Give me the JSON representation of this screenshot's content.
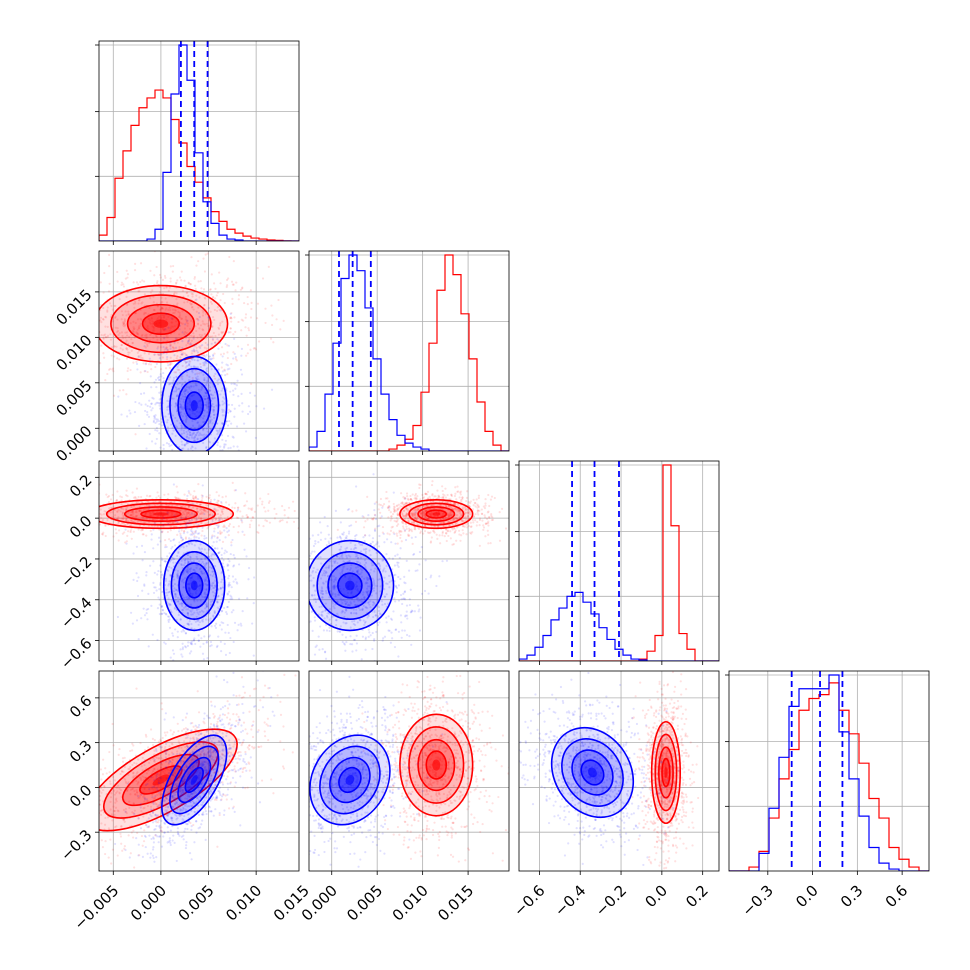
{
  "chart_data": {
    "type": "corner",
    "title": "",
    "n_params": 4,
    "colors": {
      "series_a": "#ff0000",
      "series_b": "#0000ff"
    },
    "grid": true,
    "param_ranges": [
      [
        -0.0065,
        0.0145
      ],
      [
        -0.0025,
        0.0195
      ],
      [
        -0.7,
        0.28
      ],
      [
        -0.56,
        0.78
      ]
    ],
    "x_tick_labels": [
      [
        "−0.005",
        "0.000",
        "0.005",
        "0.010",
        "0.015"
      ],
      [
        "0.000",
        "0.005",
        "0.010",
        "0.015"
      ],
      [
        "−0.6",
        "−0.4",
        "−0.2",
        "0.0",
        "0.2"
      ],
      [
        "−0.3",
        "0.0",
        "0.3",
        "0.6"
      ]
    ],
    "x_tick_values": [
      [
        -0.005,
        0.0,
        0.005,
        0.01,
        0.015
      ],
      [
        0.0,
        0.005,
        0.01,
        0.015
      ],
      [
        -0.6,
        -0.4,
        -0.2,
        0.0,
        0.2
      ],
      [
        -0.3,
        0.0,
        0.3,
        0.6
      ]
    ],
    "y_tick_labels": [
      [],
      [
        "0.000",
        "0.005",
        "0.010",
        "0.015"
      ],
      [
        "−0.6",
        "−0.4",
        "−0.2",
        "0.0",
        "0.2"
      ],
      [
        "−0.3",
        "0.0",
        "0.3",
        "0.6"
      ]
    ],
    "y_tick_values": [
      [],
      [
        0.0,
        0.005,
        0.01,
        0.015
      ],
      [
        -0.6,
        -0.4,
        -0.2,
        0.0,
        0.2
      ],
      [
        -0.3,
        0.0,
        0.3,
        0.6
      ]
    ],
    "marginals": [
      {
        "bins": [
          -0.0065,
          0.0145
        ],
        "series_a": [
          0.03,
          0.12,
          0.32,
          0.46,
          0.59,
          0.68,
          0.73,
          0.77,
          0.73,
          0.62,
          0.5,
          0.38,
          0.3,
          0.22,
          0.15,
          0.1,
          0.06,
          0.04,
          0.025,
          0.015,
          0.01,
          0.005,
          0.003,
          0.001,
          0.0
        ],
        "series_b": [
          0.0,
          0.0,
          0.0,
          0.0,
          0.0,
          0.0,
          0.01,
          0.06,
          0.35,
          0.75,
          1.0,
          0.82,
          0.45,
          0.2,
          0.09,
          0.03,
          0.01,
          0.005,
          0.0,
          0.0,
          0.0,
          0.0,
          0.0,
          0.0,
          0.0
        ],
        "quantiles_b": [
          0.0021,
          0.0035,
          0.0049
        ]
      },
      {
        "bins": [
          -0.0025,
          0.0195
        ],
        "series_a": [
          0.0,
          0.0,
          0.0,
          0.0,
          0.0,
          0.0,
          0.0,
          0.0,
          0.0,
          0.0,
          0.01,
          0.03,
          0.06,
          0.13,
          0.3,
          0.55,
          0.82,
          1.0,
          0.9,
          0.7,
          0.47,
          0.25,
          0.1,
          0.03,
          0.0
        ],
        "series_b": [
          0.02,
          0.1,
          0.29,
          0.55,
          0.88,
          1.0,
          0.92,
          0.73,
          0.47,
          0.29,
          0.16,
          0.08,
          0.04,
          0.02,
          0.01,
          0.0,
          0.0,
          0.0,
          0.0,
          0.0,
          0.0,
          0.0,
          0.0,
          0.0,
          0.0
        ],
        "quantiles_b": [
          0.0008,
          0.0023,
          0.0043
        ]
      },
      {
        "bins": [
          -0.7,
          0.28
        ],
        "series_a": [
          0.0,
          0.0,
          0.0,
          0.0,
          0.0,
          0.0,
          0.0,
          0.0,
          0.0,
          0.0,
          0.0,
          0.0,
          0.0,
          0.0,
          0.0,
          0.01,
          0.05,
          0.13,
          1.0,
          0.69,
          0.14,
          0.06,
          0.0,
          0.0,
          0.0
        ],
        "series_b": [
          0.01,
          0.03,
          0.07,
          0.13,
          0.21,
          0.27,
          0.33,
          0.35,
          0.3,
          0.24,
          0.17,
          0.11,
          0.06,
          0.03,
          0.01,
          0.005,
          0.0,
          0.0,
          0.0,
          0.0,
          0.0,
          0.0,
          0.0,
          0.0,
          0.0
        ],
        "quantiles_b": [
          -0.44,
          -0.33,
          -0.21
        ]
      },
      {
        "bins": [
          -0.56,
          0.78
        ],
        "series_a": [
          0.0,
          0.0,
          0.02,
          0.1,
          0.27,
          0.47,
          0.62,
          0.82,
          0.88,
          0.9,
          0.96,
          0.82,
          0.7,
          0.55,
          0.37,
          0.27,
          0.12,
          0.06,
          0.02,
          0.0
        ],
        "series_b": [
          0.0,
          0.0,
          0.0,
          0.09,
          0.32,
          0.58,
          0.84,
          0.93,
          0.93,
          0.93,
          1.0,
          0.71,
          0.47,
          0.28,
          0.12,
          0.04,
          0.01,
          0.0,
          0.0,
          0.0
        ],
        "quantiles_b": [
          -0.14,
          0.05,
          0.2
        ]
      }
    ],
    "joints": [
      {
        "row": 1,
        "col": 0,
        "a": {
          "center": [
            0.0,
            0.0115
          ],
          "sd": [
            0.0035,
            0.0021
          ],
          "rho": 0.0
        },
        "b": {
          "center": [
            0.0035,
            0.0025
          ],
          "sd": [
            0.0017,
            0.0027
          ],
          "rho": 0.0
        }
      },
      {
        "row": 2,
        "col": 0,
        "a": {
          "center": [
            0.0,
            0.02
          ],
          "sd": [
            0.0038,
            0.035
          ],
          "rho": 0.0
        },
        "b": {
          "center": [
            0.0035,
            -0.33
          ],
          "sd": [
            0.0016,
            0.11
          ],
          "rho": 0.0
        }
      },
      {
        "row": 2,
        "col": 1,
        "a": {
          "center": [
            0.0115,
            0.02
          ],
          "sd": [
            0.002,
            0.035
          ],
          "rho": 0.0
        },
        "b": {
          "center": [
            0.002,
            -0.33
          ],
          "sd": [
            0.0024,
            0.11
          ],
          "rho": 0.0
        }
      },
      {
        "row": 3,
        "col": 0,
        "a": {
          "center": [
            0.0,
            0.05
          ],
          "sd": [
            0.004,
            0.17
          ],
          "rho": 0.7
        },
        "b": {
          "center": [
            0.0035,
            0.05
          ],
          "sd": [
            0.0017,
            0.15
          ],
          "rho": 0.6
        }
      },
      {
        "row": 3,
        "col": 1,
        "a": {
          "center": [
            0.0115,
            0.15
          ],
          "sd": [
            0.002,
            0.17
          ],
          "rho": 0.0
        },
        "b": {
          "center": [
            0.002,
            0.05
          ],
          "sd": [
            0.0022,
            0.15
          ],
          "rho": 0.2
        }
      },
      {
        "row": 3,
        "col": 2,
        "a": {
          "center": [
            0.02,
            0.1
          ],
          "sd": [
            0.035,
            0.17
          ],
          "rho": 0.0
        },
        "b": {
          "center": [
            -0.34,
            0.1
          ],
          "sd": [
            0.1,
            0.15
          ],
          "rho": -0.2
        }
      }
    ]
  }
}
